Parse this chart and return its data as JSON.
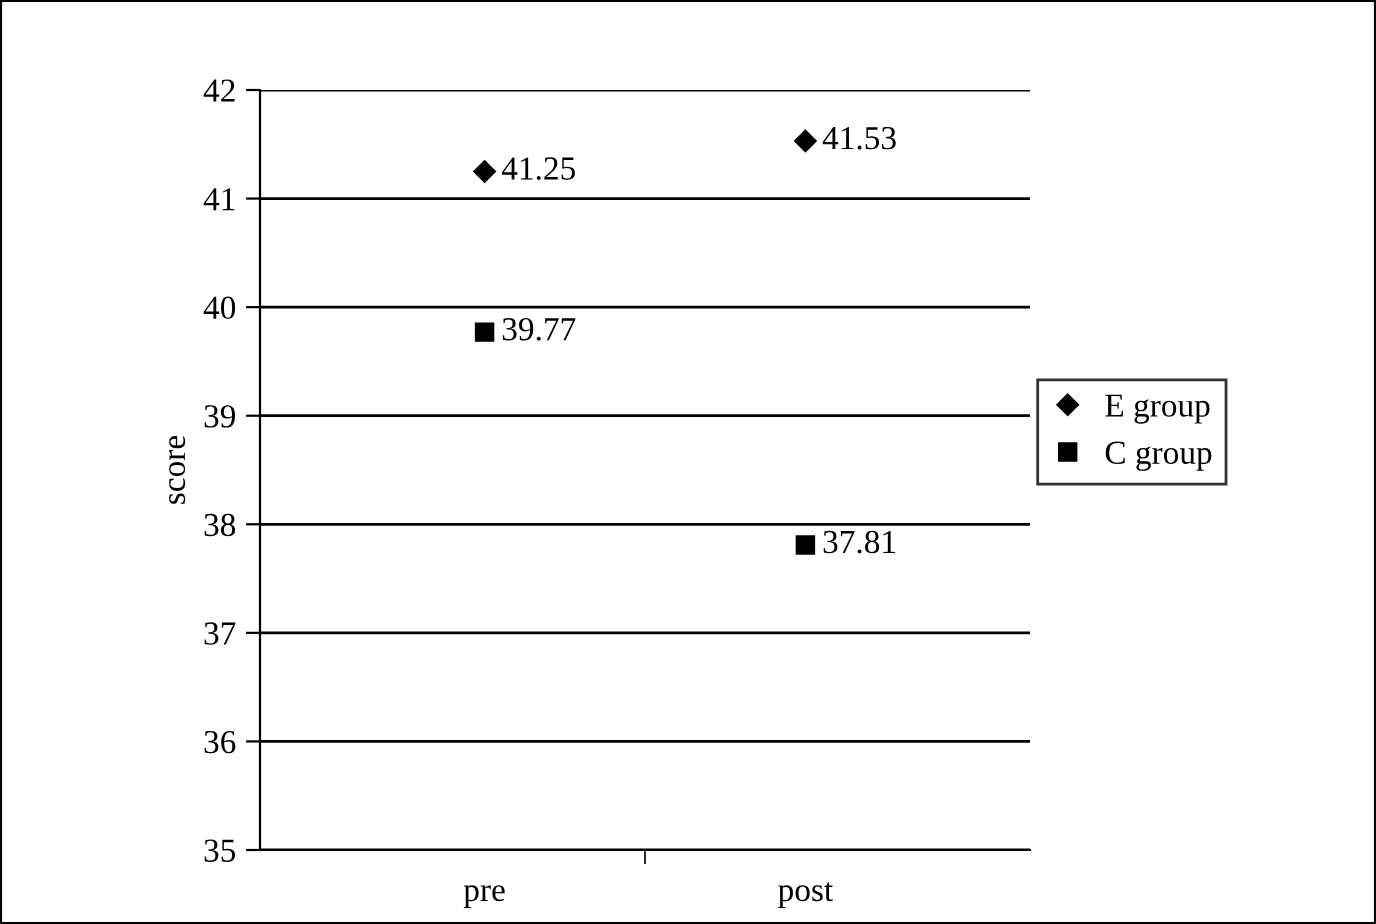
{
  "chart_data": {
    "type": "scatter",
    "ylabel": "score",
    "categories": [
      "pre",
      "post"
    ],
    "series": [
      {
        "name": "E group",
        "color": "#000000",
        "marker": "diamond",
        "values": [
          41.25,
          41.53
        ]
      },
      {
        "name": "C group",
        "color": "#000000",
        "marker": "square",
        "values": [
          39.77,
          37.81
        ]
      }
    ],
    "ylim": [
      35,
      42
    ],
    "yticks": [
      35,
      36,
      37,
      38,
      39,
      40,
      41,
      42
    ],
    "grid": "y",
    "legend": "right",
    "data_labels": true
  }
}
